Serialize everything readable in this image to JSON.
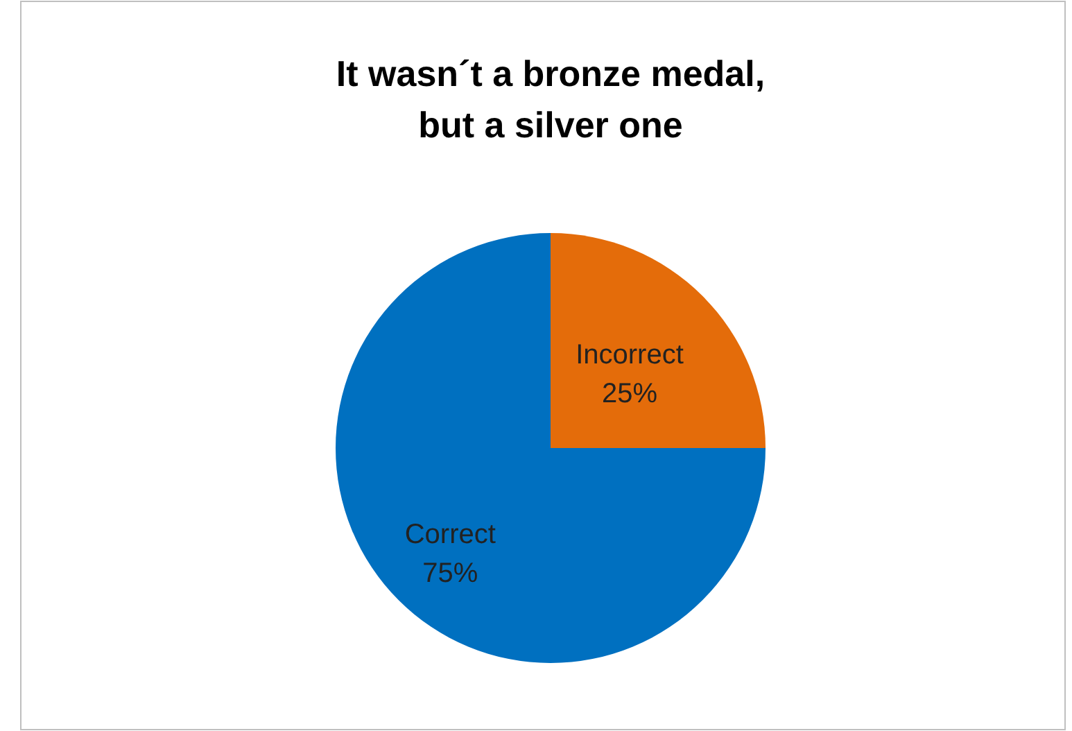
{
  "chart_data": {
    "type": "pie",
    "title": "It wasn´t a bronze medal,\nbut a silver one",
    "categories": [
      "Incorrect",
      "Correct"
    ],
    "values": [
      25,
      75
    ],
    "colors": [
      "#e46c0a",
      "#0070c0"
    ],
    "value_labels": [
      "25%",
      "75%"
    ]
  }
}
